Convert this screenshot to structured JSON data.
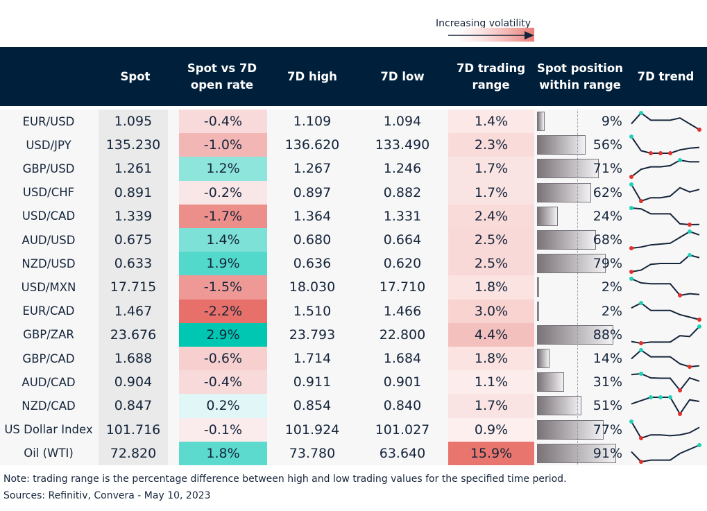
{
  "legend": {
    "label": "Increasing volatility"
  },
  "headers": [
    "",
    "Spot",
    "Spot vs 7D open rate",
    "7D high",
    "7D low",
    "7D trading range",
    "Spot position within range",
    "7D trend"
  ],
  "colors": {
    "header": "#001f3a",
    "positive": "#00c7b1",
    "negative": "#e8706a",
    "range": "#e8766e",
    "spark_line": "#14243a",
    "spark_high": "#1fcfb6",
    "spark_low": "#e2302a"
  },
  "chart_data": {
    "type": "table",
    "rows": [
      {
        "pair": "EUR/USD",
        "spot": "1.095",
        "vs_open": "-0.4%",
        "high": "1.109",
        "low": "1.094",
        "range": "1.4%",
        "position": "9%",
        "trend": [
          0.35,
          1,
          0.57,
          0.57,
          0.57,
          0.7,
          0.35,
          0
        ]
      },
      {
        "pair": "USD/JPY",
        "spot": "135.230",
        "vs_open": "-1.0%",
        "high": "136.620",
        "low": "133.490",
        "range": "2.3%",
        "position": "56%",
        "trend": [
          1,
          0.15,
          0,
          0,
          0,
          0.2,
          0.3,
          0.35
        ]
      },
      {
        "pair": "GBP/USD",
        "spot": "1.261",
        "vs_open": "1.2%",
        "high": "1.267",
        "low": "1.246",
        "range": "1.7%",
        "position": "71%",
        "trend": [
          0,
          0.45,
          0.6,
          0.6,
          0.67,
          1,
          0.9,
          0.9
        ]
      },
      {
        "pair": "USD/CHF",
        "spot": "0.891",
        "vs_open": "-0.2%",
        "high": "0.897",
        "low": "0.882",
        "range": "1.7%",
        "position": "62%",
        "trend": [
          1,
          0,
          0.2,
          0.2,
          0.3,
          0.8,
          0.55,
          0.7
        ]
      },
      {
        "pair": "USD/CAD",
        "spot": "1.339",
        "vs_open": "-1.7%",
        "high": "1.364",
        "low": "1.331",
        "range": "2.4%",
        "position": "24%",
        "trend": [
          1,
          0.95,
          0.65,
          0.65,
          0.65,
          0.05,
          0,
          0.01
        ]
      },
      {
        "pair": "AUD/USD",
        "spot": "0.675",
        "vs_open": "1.4%",
        "high": "0.680",
        "low": "0.664",
        "range": "2.5%",
        "position": "68%",
        "trend": [
          0,
          0.07,
          0.2,
          0.25,
          0.3,
          0.65,
          1,
          0.8
        ]
      },
      {
        "pair": "NZD/USD",
        "spot": "0.633",
        "vs_open": "1.9%",
        "high": "0.636",
        "low": "0.620",
        "range": "2.5%",
        "position": "79%",
        "trend": [
          0,
          0.1,
          0.45,
          0.5,
          0.5,
          0.5,
          1,
          0.85
        ]
      },
      {
        "pair": "USD/MXN",
        "spot": "17.715",
        "vs_open": "-1.5%",
        "high": "18.030",
        "low": "17.710",
        "range": "1.8%",
        "position": "2%",
        "trend": [
          1,
          0.75,
          0.7,
          0.7,
          0.7,
          0,
          0.1,
          0.05
        ]
      },
      {
        "pair": "EUR/CAD",
        "spot": "1.467",
        "vs_open": "-2.2%",
        "high": "1.510",
        "low": "1.466",
        "range": "3.0%",
        "position": "2%",
        "trend": [
          0.7,
          1,
          0.55,
          0.55,
          0.55,
          0.3,
          0.15,
          0
        ]
      },
      {
        "pair": "GBP/ZAR",
        "spot": "23.676",
        "vs_open": "2.9%",
        "high": "23.793",
        "low": "22.800",
        "range": "4.4%",
        "position": "88%",
        "trend": [
          0.1,
          0,
          0.07,
          0.07,
          0.07,
          0.45,
          0.4,
          1
        ]
      },
      {
        "pair": "GBP/CAD",
        "spot": "1.688",
        "vs_open": "-0.6%",
        "high": "1.714",
        "low": "1.684",
        "range": "1.8%",
        "position": "14%",
        "trend": [
          0.48,
          1,
          0.6,
          0.6,
          0.6,
          0.18,
          0,
          0.06
        ]
      },
      {
        "pair": "AUD/CAD",
        "spot": "0.904",
        "vs_open": "-0.4%",
        "high": "0.911",
        "low": "0.901",
        "range": "1.1%",
        "position": "31%",
        "trend": [
          0.95,
          1,
          0.75,
          0.73,
          0.73,
          0,
          0.75,
          0.55
        ]
      },
      {
        "pair": "NZD/CAD",
        "spot": "0.847",
        "vs_open": "0.2%",
        "high": "0.854",
        "low": "0.840",
        "range": "1.7%",
        "position": "51%",
        "trend": [
          0.6,
          0.8,
          1,
          1,
          1,
          0,
          0.85,
          0.75
        ]
      },
      {
        "pair": "US Dollar Index",
        "spot": "101.716",
        "vs_open": "-0.1%",
        "high": "101.924",
        "low": "101.027",
        "range": "0.9%",
        "position": "77%",
        "trend": [
          1,
          0,
          0.2,
          0.2,
          0.15,
          0.2,
          0.33,
          0.65
        ]
      },
      {
        "pair": "Oil (WTI)",
        "spot": "72.820",
        "vs_open": "1.8%",
        "high": "73.780",
        "low": "63.640",
        "range": "15.9%",
        "position": "91%",
        "trend": [
          0.6,
          0,
          0.1,
          0.1,
          0.1,
          0.5,
          0.75,
          1
        ]
      }
    ]
  },
  "notes": {
    "note": "Note: trading range is the percentage difference between high and low trading values for the specified time period.",
    "sources": "Sources: Refinitiv, Convera - May 10, 2023"
  }
}
